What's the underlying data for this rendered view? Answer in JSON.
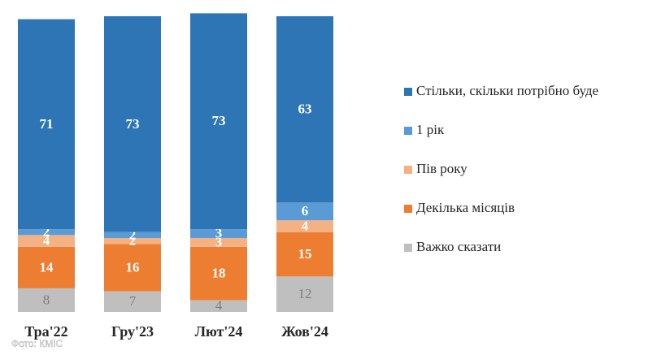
{
  "chart_data": {
    "type": "stacked_bar",
    "categories": [
      "Тра'22",
      "Гру'23",
      "Лют'24",
      "Жов'24"
    ],
    "series": [
      {
        "name": "Важко сказати",
        "color": "#bfbfbf",
        "label_color": "#7f7f7f",
        "values": [
          8,
          7,
          4,
          12
        ]
      },
      {
        "name": "Декілька місяців",
        "color": "#ed7d31",
        "label_color": "#ffffff",
        "values": [
          14,
          16,
          18,
          15
        ]
      },
      {
        "name": "Пів року",
        "color": "#f4b183",
        "label_color": "#ffffff",
        "values": [
          4,
          2,
          3,
          4
        ]
      },
      {
        "name": "1 рік",
        "color": "#5b9bd5",
        "label_color": "#ffffff",
        "values": [
          2,
          2,
          3,
          6
        ]
      },
      {
        "name": "Стільки, скільки потрібно буде",
        "color": "#2e75b6",
        "label_color": "#ffffff",
        "values": [
          71,
          73,
          73,
          63
        ]
      }
    ],
    "ylim": [
      0,
      100
    ],
    "watermark": "Фото: КМІС"
  }
}
